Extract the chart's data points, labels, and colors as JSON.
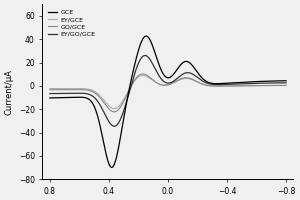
{
  "title": "",
  "xlabel": "",
  "ylabel": "Current/μA",
  "xlim": [
    0.85,
    -0.85
  ],
  "ylim": [
    -80,
    70
  ],
  "xticks": [
    0.8,
    0.4,
    0.0,
    -0.4,
    -0.8
  ],
  "yticks": [
    -80,
    -60,
    -40,
    -20,
    0,
    20,
    40,
    60
  ],
  "legend_labels": [
    "GCE",
    "EY/GCE",
    "GO/GCE",
    "EY/GO/GCE"
  ],
  "legend_colors": [
    "#000000",
    "#aaaaaa",
    "#888888",
    "#333333"
  ],
  "background_color": "#f0f0f0",
  "figsize": [
    3.0,
    2.0
  ],
  "dpi": 100
}
